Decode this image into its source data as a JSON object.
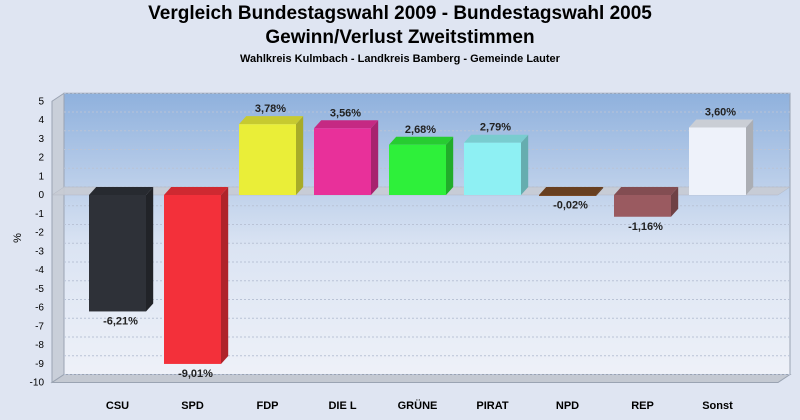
{
  "chart_data": {
    "type": "bar",
    "title": "Vergleich Bundestagswahl 2009 - Bundestagswahl 2005",
    "subtitle": "Gewinn/Verlust Zweitstimmen",
    "subsubtitle": "Wahlkreis Kulmbach - Landkreis Bamberg - Gemeinde Lauter",
    "ylabel": "%",
    "xlabel": "",
    "ylim": [
      -10,
      5
    ],
    "yticks": [
      "5",
      "4",
      "3",
      "2",
      "1",
      "0",
      "-1",
      "-2",
      "-3",
      "-4",
      "-5",
      "-6",
      "-7",
      "-8",
      "-9",
      "-10"
    ],
    "categories": [
      "CSU",
      "SPD",
      "FDP",
      "DIE L",
      "GRÜNE",
      "PIRAT",
      "NPD",
      "REP",
      "Sonst"
    ],
    "values": [
      -6.21,
      -9.01,
      3.78,
      3.56,
      2.68,
      2.79,
      -0.02,
      -1.16,
      3.6
    ],
    "value_labels": [
      "-6,21%",
      "-9,01%",
      "3,78%",
      "3,56%",
      "2,68%",
      "2,79%",
      "-0,02%",
      "-1,16%",
      "3,60%"
    ],
    "colors": [
      "#2e3138",
      "#f3303a",
      "#eaee38",
      "#e8309a",
      "#2ef03a",
      "#8ef0f3",
      "#7a4a26",
      "#9a5a60",
      "#eef2fa"
    ],
    "grid": true,
    "legend": "none"
  }
}
